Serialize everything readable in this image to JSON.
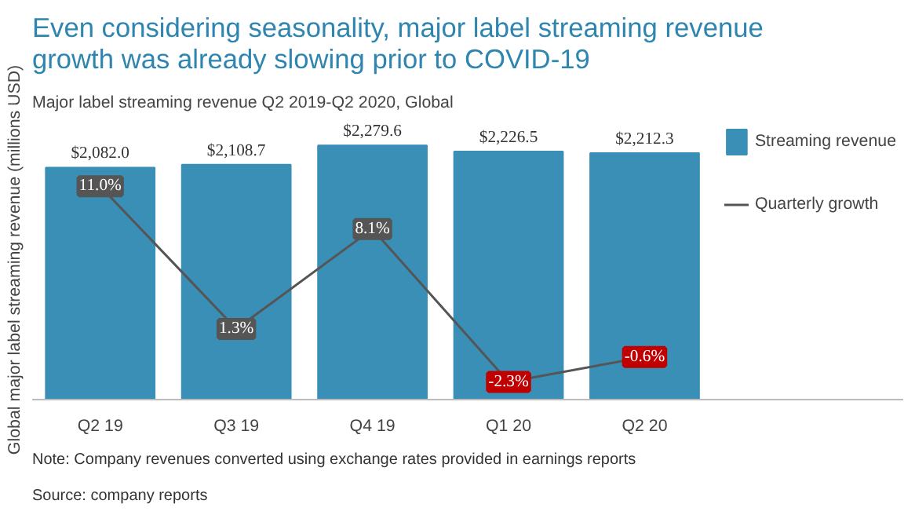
{
  "chart_data": {
    "type": "bar",
    "title": "Even considering seasonality, major label streaming revenue growth was already slowing prior to COVID-19",
    "subtitle": "Major label streaming revenue Q2 2019-Q2 2020, Global",
    "ylabel": "Global major label streaming revenue (millions USD)",
    "categories": [
      "Q2 19",
      "Q3 19",
      "Q4 19",
      "Q1 20",
      "Q2 20"
    ],
    "series": [
      {
        "name": "Streaming revenue",
        "color": "#3a8fb7",
        "values": [
          2082.0,
          2108.7,
          2279.6,
          2226.5,
          2212.3
        ],
        "value_labels": [
          "$2,082.0",
          "$2,108.7",
          "$2,279.6",
          "$2,226.5",
          "$2,212.3"
        ]
      },
      {
        "name": "Quarterly growth",
        "type": "line",
        "axis": "y2",
        "color": "#555555",
        "values": [
          11.0,
          1.3,
          8.1,
          -2.3,
          -0.6
        ],
        "value_labels": [
          "11.0%",
          "1.3%",
          "8.1%",
          "-2.3%",
          "-0.6%"
        ]
      }
    ],
    "legend": "right",
    "grid": false,
    "marker": "square",
    "annotations": [
      "Note: Company revenues converted using exchange rates provided in earnings reports",
      "Source: company reports"
    ]
  }
}
